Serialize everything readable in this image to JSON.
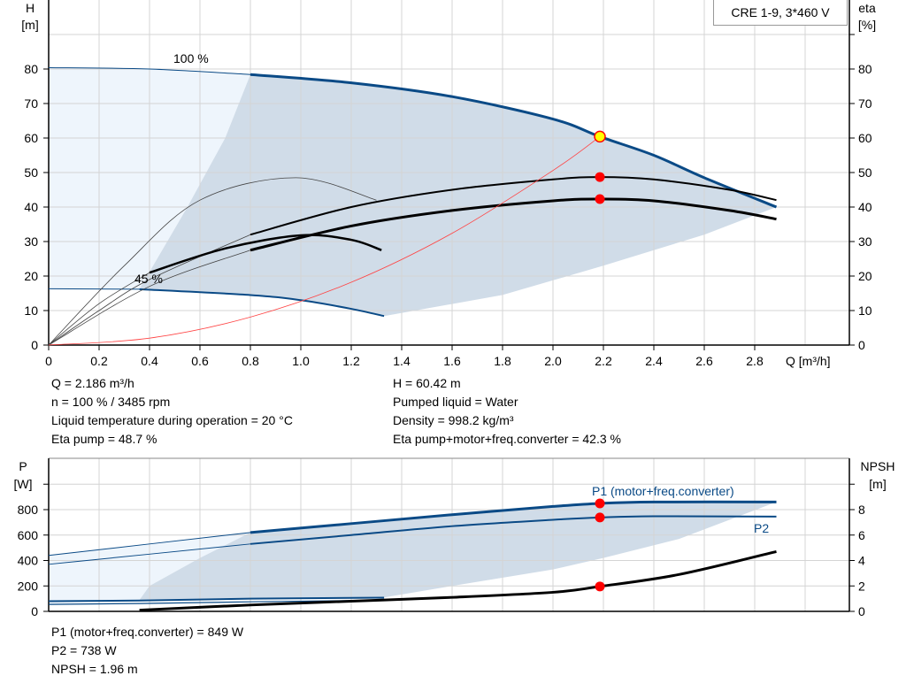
{
  "model_label": "CRE 1-9, 3*460 V",
  "colors": {
    "curve_blue": "#0a4a86",
    "shade_dark": "#d0dce8",
    "shade_light": "#eef5fc",
    "duty_point": "#ff0000",
    "system_curve": "#ff4444",
    "operating_point_fill": "#ffff00",
    "grid": "#d4d4d4"
  },
  "info_top_left": [
    "Q = 2.186 m³/h",
    "n = 100 % / 3485 rpm",
    "Liquid temperature during operation = 20 °C",
    "Eta pump = 48.7 %"
  ],
  "info_top_right": [
    "H = 60.42 m",
    "Pumped liquid = Water",
    "Density = 998.2 kg/m³",
    "Eta pump+motor+freq.converter = 42.3 %"
  ],
  "info_bottom": [
    "P1 (motor+freq.converter) = 849 W",
    "P2 = 738 W",
    "NPSH = 1.96 m"
  ],
  "chart_data": [
    {
      "type": "line",
      "title": "",
      "xlabel": "Q [m³/h]",
      "ylabel_left": [
        "H",
        "[m]"
      ],
      "ylabel_right": [
        "eta",
        "[%]"
      ],
      "xlim": [
        0,
        3.17
      ],
      "ylim": [
        0,
        100
      ],
      "x_ticks": [
        "0",
        "0.2",
        "0.4",
        "0.6",
        "0.8",
        "1.0",
        "1.2",
        "1.4",
        "1.6",
        "1.8",
        "2.0",
        "2.2",
        "2.4",
        "2.6",
        "2.8"
      ],
      "y_ticks": [
        "0",
        "10",
        "20",
        "30",
        "40",
        "50",
        "60",
        "70",
        "80"
      ],
      "grid": true,
      "curve_labels": [
        "100 %",
        "45 %"
      ],
      "series": [
        {
          "id": "H-100",
          "points": [
            [
              0,
              80.4
            ],
            [
              0.4,
              80
            ],
            [
              0.8,
              78.4
            ],
            [
              1.2,
              76
            ],
            [
              1.6,
              72
            ],
            [
              2.0,
              65.5
            ],
            [
              2.186,
              60.4
            ],
            [
              2.4,
              55
            ],
            [
              2.6,
              48.5
            ],
            [
              2.886,
              40
            ]
          ]
        },
        {
          "id": "H-45",
          "points": [
            [
              0,
              16.3
            ],
            [
              0.36,
              16.2
            ],
            [
              0.8,
              14.5
            ],
            [
              1.0,
              13
            ],
            [
              1.2,
              10.5
            ],
            [
              1.33,
              8.4
            ]
          ]
        },
        {
          "id": "eta-pump-100",
          "points": [
            [
              0,
              0
            ],
            [
              0.2,
              10
            ],
            [
              0.4,
              19
            ],
            [
              0.8,
              32
            ],
            [
              1.2,
              40
            ],
            [
              1.6,
              45
            ],
            [
              2.0,
              48
            ],
            [
              2.186,
              48.7
            ],
            [
              2.4,
              48
            ],
            [
              2.7,
              45
            ],
            [
              2.886,
              42
            ]
          ]
        },
        {
          "id": "eta-total-100",
          "points": [
            [
              0,
              0
            ],
            [
              0.4,
              17
            ],
            [
              0.8,
              27.5
            ],
            [
              1.2,
              34.5
            ],
            [
              1.6,
              39
            ],
            [
              2.0,
              41.8
            ],
            [
              2.186,
              42.3
            ],
            [
              2.4,
              41.8
            ],
            [
              2.7,
              39
            ],
            [
              2.886,
              36.5
            ]
          ]
        },
        {
          "id": "eta-pump-45",
          "points": [
            [
              0,
              0
            ],
            [
              0.3,
              23
            ],
            [
              0.6,
              42
            ],
            [
              0.98,
              48.5
            ],
            [
              1.3,
              42
            ]
          ]
        },
        {
          "id": "eta-total-45",
          "points": [
            [
              0,
              0
            ],
            [
              0.2,
              12
            ],
            [
              0.4,
              21
            ],
            [
              0.7,
              28
            ],
            [
              1.0,
              31.8
            ],
            [
              1.2,
              30.5
            ],
            [
              1.32,
              27.5
            ]
          ]
        },
        {
          "id": "system-curve",
          "points": [
            [
              0,
              0
            ],
            [
              0.4,
              2
            ],
            [
              0.8,
              8.1
            ],
            [
              1.2,
              18.2
            ],
            [
              1.6,
              32.4
            ],
            [
              2.0,
              50.6
            ],
            [
              2.186,
              60.42
            ]
          ]
        }
      ],
      "duty_points": [
        {
          "q": 2.186,
          "h": 60.42
        },
        {
          "q": 2.186,
          "eta": 48.7
        },
        {
          "q": 2.186,
          "eta": 42.3
        }
      ]
    },
    {
      "type": "line",
      "xlim": [
        0,
        3.17
      ],
      "ylim": [
        0,
        1200
      ],
      "ylabel_left": [
        "P",
        "[W]"
      ],
      "ylabel_right": [
        "NPSH",
        "[m]"
      ],
      "y_ticks": [
        "0",
        "200",
        "400",
        "600",
        "800"
      ],
      "y_ticks_right": [
        "0",
        "2",
        "4",
        "6",
        "8"
      ],
      "grid": true,
      "series": [
        {
          "id": "P1",
          "name": "P1 (motor+freq.converter)",
          "points": [
            [
              0,
              440
            ],
            [
              0.8,
              620
            ],
            [
              1.2,
              690
            ],
            [
              1.6,
              760
            ],
            [
              2.0,
              825
            ],
            [
              2.186,
              849
            ],
            [
              2.4,
              860
            ],
            [
              2.886,
              860
            ]
          ]
        },
        {
          "id": "P2",
          "name": "P2",
          "points": [
            [
              0,
              370
            ],
            [
              0.8,
              530
            ],
            [
              1.2,
              600
            ],
            [
              1.6,
              670
            ],
            [
              2.0,
              720
            ],
            [
              2.186,
              738
            ],
            [
              2.4,
              748
            ],
            [
              2.886,
              745
            ]
          ]
        },
        {
          "id": "NPSH",
          "points": [
            [
              0.36,
              0.1
            ],
            [
              0.8,
              0.5
            ],
            [
              1.2,
              0.8
            ],
            [
              1.6,
              1.1
            ],
            [
              2.0,
              1.5
            ],
            [
              2.186,
              1.96
            ],
            [
              2.5,
              2.9
            ],
            [
              2.886,
              4.7
            ]
          ]
        }
      ],
      "duty_points": [
        {
          "q": 2.186,
          "p": 849
        },
        {
          "q": 2.186,
          "p": 738
        },
        {
          "q": 2.186,
          "npsh": 1.96
        }
      ]
    }
  ]
}
